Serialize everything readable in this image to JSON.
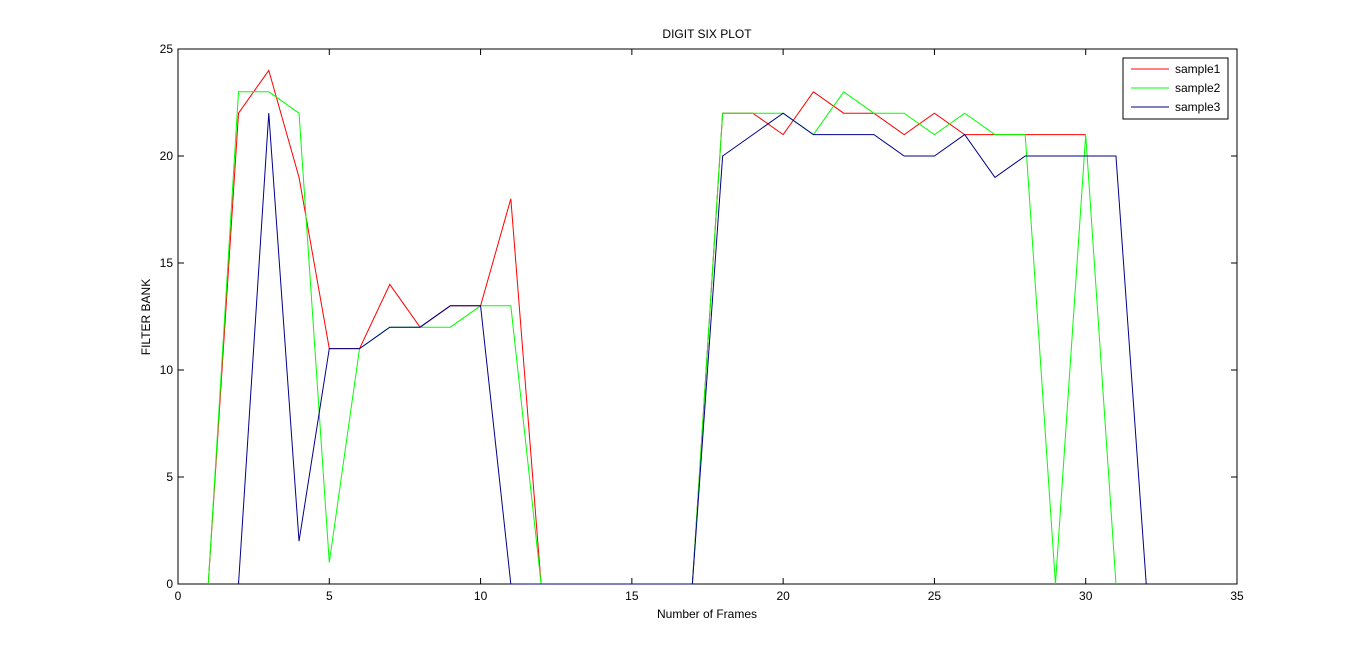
{
  "chart_data": {
    "type": "line",
    "title": "DIGIT SIX PLOT",
    "xlabel": "Number of Frames",
    "ylabel": "FILTER BANK",
    "xlim": [
      0,
      35
    ],
    "ylim": [
      0,
      25
    ],
    "xticks": [
      0,
      5,
      10,
      15,
      20,
      25,
      30,
      35
    ],
    "yticks": [
      0,
      5,
      10,
      15,
      20,
      25
    ],
    "grid": false,
    "legend_position": "top-right",
    "series": [
      {
        "name": "sample1",
        "color": "#ff0000",
        "points": [
          [
            1,
            0
          ],
          [
            2,
            22
          ],
          [
            3,
            24
          ],
          [
            4,
            19
          ],
          [
            5,
            11
          ],
          [
            6,
            11
          ],
          [
            7,
            14
          ],
          [
            8,
            12
          ],
          [
            9,
            13
          ],
          [
            10,
            13
          ],
          [
            11,
            18
          ],
          [
            12,
            0
          ],
          [
            13,
            0
          ],
          [
            14,
            0
          ],
          [
            15,
            0
          ],
          [
            16,
            0
          ],
          [
            17,
            0
          ],
          [
            18,
            22
          ],
          [
            19,
            22
          ],
          [
            20,
            21
          ],
          [
            21,
            23
          ],
          [
            22,
            22
          ],
          [
            23,
            22
          ],
          [
            24,
            21
          ],
          [
            25,
            22
          ],
          [
            26,
            21
          ],
          [
            27,
            21
          ],
          [
            28,
            21
          ],
          [
            29,
            21
          ],
          [
            30,
            21
          ]
        ]
      },
      {
        "name": "sample2",
        "color": "#00ff00",
        "points": [
          [
            1,
            0
          ],
          [
            2,
            23
          ],
          [
            3,
            23
          ],
          [
            4,
            22
          ],
          [
            5,
            1
          ],
          [
            6,
            11
          ],
          [
            7,
            12
          ],
          [
            8,
            12
          ],
          [
            9,
            12
          ],
          [
            10,
            13
          ],
          [
            11,
            13
          ],
          [
            12,
            0
          ],
          [
            13,
            0
          ],
          [
            14,
            0
          ],
          [
            15,
            0
          ],
          [
            16,
            0
          ],
          [
            17,
            0
          ],
          [
            18,
            22
          ],
          [
            19,
            22
          ],
          [
            20,
            22
          ],
          [
            21,
            21
          ],
          [
            22,
            23
          ],
          [
            23,
            22
          ],
          [
            24,
            22
          ],
          [
            25,
            21
          ],
          [
            26,
            22
          ],
          [
            27,
            21
          ],
          [
            28,
            21
          ],
          [
            29,
            0
          ],
          [
            30,
            21
          ],
          [
            31,
            0
          ]
        ]
      },
      {
        "name": "sample3",
        "color": "#00008b",
        "points": [
          [
            2,
            0
          ],
          [
            3,
            22
          ],
          [
            4,
            2
          ],
          [
            5,
            11
          ],
          [
            6,
            11
          ],
          [
            7,
            12
          ],
          [
            8,
            12
          ],
          [
            9,
            13
          ],
          [
            10,
            13
          ],
          [
            11,
            0
          ],
          [
            12,
            0
          ],
          [
            13,
            0
          ],
          [
            14,
            0
          ],
          [
            15,
            0
          ],
          [
            16,
            0
          ],
          [
            17,
            0
          ],
          [
            18,
            20
          ],
          [
            19,
            21
          ],
          [
            20,
            22
          ],
          [
            21,
            21
          ],
          [
            22,
            21
          ],
          [
            23,
            21
          ],
          [
            24,
            20
          ],
          [
            25,
            20
          ],
          [
            26,
            21
          ],
          [
            27,
            19
          ],
          [
            28,
            20
          ],
          [
            29,
            20
          ],
          [
            30,
            20
          ],
          [
            31,
            20
          ],
          [
            32,
            0
          ]
        ]
      }
    ]
  }
}
